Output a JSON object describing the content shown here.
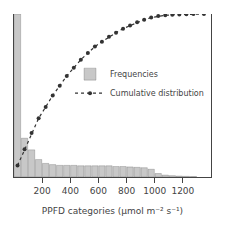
{
  "chart_data": {
    "type": "bar",
    "xlabel": "PPFD categories (μmol m⁻² s⁻¹)",
    "series": [
      {
        "name": "Frequencies",
        "type": "bar",
        "color": "#c8c8c8",
        "x": [
          25,
          75,
          125,
          175,
          225,
          275,
          325,
          375,
          425,
          475,
          525,
          575,
          625,
          675,
          725,
          775,
          825,
          875,
          925,
          975,
          1025,
          1075,
          1125,
          1175,
          1225,
          1275
        ],
        "values": [
          42,
          10,
          7,
          4.5,
          3.5,
          3.2,
          3.0,
          3.0,
          3.0,
          2.9,
          2.9,
          2.9,
          2.9,
          2.9,
          2.7,
          2.7,
          2.6,
          2.5,
          2.4,
          2.0,
          0.9,
          0.5,
          0.35,
          0.25,
          0.18,
          0.12
        ]
      },
      {
        "name": "Cumulative distribution",
        "type": "line",
        "axis": "y2",
        "color": "#333333",
        "marker": "circle",
        "line_style": "dotted",
        "x": [
          25,
          75,
          125,
          175,
          225,
          275,
          325,
          375,
          425,
          475,
          525,
          575,
          625,
          675,
          725,
          775,
          825,
          875,
          925,
          975,
          1025,
          1075,
          1125,
          1175,
          1225,
          1275,
          1350
        ],
        "values": [
          7,
          17,
          27,
          36,
          43,
          50,
          56,
          62,
          67,
          72,
          76,
          80,
          83,
          86,
          88.5,
          91,
          93,
          95,
          96.5,
          97.8,
          98.7,
          99.2,
          99.5,
          99.7,
          99.85,
          99.93,
          100
        ]
      }
    ],
    "xlim": [
      0,
      1400
    ],
    "xticks": [
      200,
      400,
      600,
      800,
      1000,
      1200
    ],
    "ylim": [
      0,
      42
    ],
    "y2lim": [
      0,
      100
    ],
    "tick_labels": "x",
    "grid": false,
    "legend": "upper right"
  }
}
